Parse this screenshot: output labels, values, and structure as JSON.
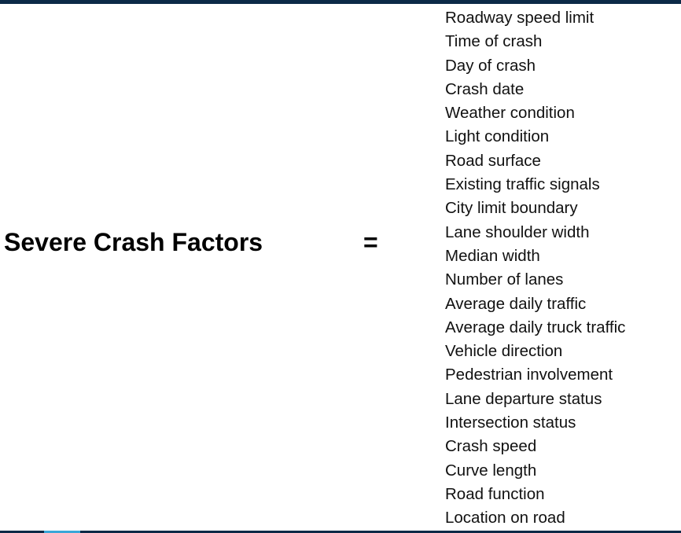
{
  "equation": {
    "left_side": "Severe Crash Factors",
    "operator": "="
  },
  "factors": [
    "Roadway speed limit",
    "Time of crash",
    "Day of crash",
    "Crash date",
    "Weather condition",
    "Light condition",
    "Road surface",
    "Existing traffic signals",
    "City limit boundary",
    "Lane shoulder width",
    "Median width",
    "Number of lanes",
    "Average daily traffic",
    "Average daily truck traffic",
    "Vehicle direction",
    "Pedestrian involvement",
    "Lane departure status",
    "Intersection status",
    "Crash speed",
    "Curve length",
    "Road function",
    "Location on road"
  ],
  "colors": {
    "frame": "#0c2a47",
    "accent": "#3aa7d8",
    "text": "#000000"
  }
}
